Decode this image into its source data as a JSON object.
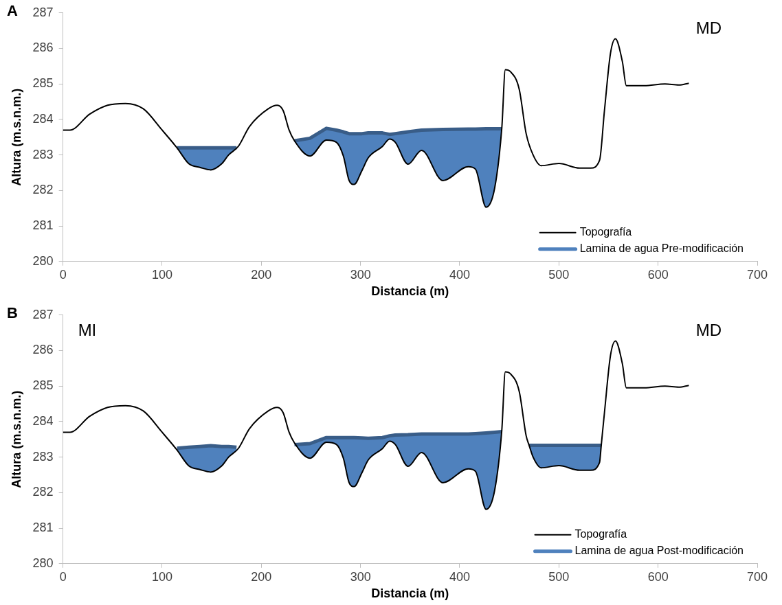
{
  "chart_data": [
    {
      "type": "line",
      "title": "A",
      "xlabel": "Distancia (m)",
      "ylabel": "Altura (m.s.n.m.)",
      "xlim": [
        0,
        700
      ],
      "xticks": [
        0,
        100,
        200,
        300,
        400,
        500,
        600,
        700
      ],
      "ylim": [
        280,
        287
      ],
      "yticks": [
        280,
        281,
        282,
        283,
        284,
        285,
        286,
        287
      ],
      "grid": false,
      "legend": "bottom right",
      "annotations": [
        "MD"
      ],
      "series": [
        {
          "name": "Topografía",
          "color": "#000000",
          "x": [
            0,
            7,
            27,
            45,
            63,
            81,
            100,
            115,
            127,
            138,
            149,
            160,
            167,
            177,
            188,
            207,
            216,
            222,
            228,
            233.4,
            249,
            265.6,
            275.6,
            282.7,
            288.5,
            293.5,
            301.4,
            307.8,
            322.1,
            329.3,
            335,
            347.9,
            361.5,
            383,
            408.7,
            415.9,
            426.6,
            435.2,
            442.4,
            446,
            451,
            460,
            467,
            474,
            482,
            500,
            521,
            532,
            541,
            546,
            552,
            557,
            564,
            568,
            586,
            607,
            621,
            631
          ],
          "values": [
            283.7,
            283.7,
            284.15,
            284.4,
            284.45,
            284.3,
            283.7,
            283.2,
            282.75,
            282.65,
            282.58,
            282.75,
            283.0,
            283.25,
            283.8,
            284.3,
            284.4,
            284.25,
            283.7,
            283.4,
            282.97,
            283.42,
            283.36,
            282.97,
            282.28,
            282.17,
            282.56,
            282.92,
            283.24,
            283.45,
            283.36,
            282.74,
            283.13,
            282.28,
            282.67,
            282.6,
            281.53,
            282.06,
            283.74,
            285.4,
            285.35,
            284.85,
            283.6,
            283.0,
            282.7,
            282.76,
            282.63,
            282.63,
            282.85,
            284.27,
            285.86,
            286.27,
            285.63,
            284.95,
            284.95,
            285.0,
            284.97,
            285.02
          ]
        },
        {
          "name": "Lamina de agua Pre-modificación",
          "type": "area",
          "color": "#4f81bd",
          "x": [
            115,
            127,
            138,
            149,
            160,
            167,
            175,
            200,
            233.4,
            249,
            265.6,
            275.6,
            282.7,
            288.5,
            293.5,
            301.4,
            307.8,
            322.1,
            329.3,
            335,
            347.9,
            361.5,
            383,
            408.7,
            415.9,
            426.6,
            435.2,
            442.4
          ],
          "values": [
            283.2,
            283.2,
            283.2,
            283.2,
            283.2,
            283.2,
            283.2,
            null,
            283.4,
            283.47,
            283.75,
            283.7,
            283.65,
            283.6,
            283.6,
            283.6,
            283.62,
            283.62,
            283.58,
            283.6,
            283.65,
            283.7,
            283.72,
            283.73,
            283.73,
            283.74,
            283.74,
            283.74
          ]
        }
      ]
    },
    {
      "type": "line",
      "title": "B",
      "xlabel": "Distancia (m)",
      "ylabel": "Altura (m.s.n.m.)",
      "xlim": [
        0,
        700
      ],
      "xticks": [
        0,
        100,
        200,
        300,
        400,
        500,
        600,
        700
      ],
      "ylim": [
        280,
        287
      ],
      "yticks": [
        280,
        281,
        282,
        283,
        284,
        285,
        286,
        287
      ],
      "grid": false,
      "legend": "bottom right",
      "annotations": [
        "MI",
        "MD"
      ],
      "series": [
        {
          "name": "Topografía",
          "color": "#000000",
          "x": [
            0,
            7,
            27,
            45,
            63,
            81,
            100,
            115,
            127,
            138,
            149,
            160,
            167,
            177,
            188,
            207,
            216,
            222,
            228,
            233.4,
            249,
            265.6,
            275.6,
            282.7,
            288.5,
            293.5,
            301.4,
            307.8,
            322.1,
            329.3,
            335,
            347.9,
            361.5,
            383,
            408.7,
            415.9,
            426.6,
            435.2,
            442.4,
            446,
            451,
            460,
            467,
            470,
            474,
            482,
            500,
            521,
            532,
            541,
            542.7,
            546,
            552,
            557,
            564,
            568,
            586,
            607,
            621,
            631
          ],
          "values": [
            283.7,
            283.7,
            284.15,
            284.4,
            284.45,
            284.3,
            283.7,
            283.2,
            282.75,
            282.65,
            282.58,
            282.75,
            283.0,
            283.25,
            283.8,
            284.3,
            284.4,
            284.25,
            283.7,
            283.4,
            282.97,
            283.42,
            283.36,
            282.97,
            282.28,
            282.17,
            282.56,
            282.92,
            283.24,
            283.45,
            283.36,
            282.74,
            283.13,
            282.28,
            282.67,
            282.6,
            281.53,
            282.06,
            283.74,
            285.4,
            285.35,
            284.85,
            283.6,
            283.33,
            283.0,
            282.7,
            282.76,
            282.63,
            282.63,
            282.85,
            283.33,
            284.27,
            285.86,
            286.27,
            285.63,
            284.95,
            284.95,
            285.0,
            284.97,
            285.02
          ]
        },
        {
          "name": "Lamina de agua Post-modificación",
          "type": "area",
          "color": "#4f81bd",
          "x": [
            115,
            127,
            138,
            149,
            160,
            167,
            175,
            200,
            233.4,
            249,
            265.6,
            275.6,
            282.7,
            288.5,
            293.5,
            301.4,
            307.8,
            322.1,
            329.3,
            335,
            347.9,
            361.5,
            383,
            408.7,
            415.9,
            426.6,
            435.2,
            442.4,
            455,
            470,
            474,
            482,
            500,
            521,
            532,
            541,
            542.7
          ],
          "values": [
            283.25,
            283.28,
            283.3,
            283.32,
            283.3,
            283.3,
            283.28,
            null,
            283.35,
            283.38,
            283.55,
            283.55,
            283.55,
            283.55,
            283.55,
            283.54,
            283.53,
            283.55,
            283.6,
            283.62,
            283.63,
            283.65,
            283.65,
            283.65,
            283.66,
            283.68,
            283.7,
            283.72,
            null,
            283.33,
            283.33,
            283.33,
            283.33,
            283.33,
            283.33,
            283.33,
            283.33
          ]
        }
      ]
    }
  ]
}
